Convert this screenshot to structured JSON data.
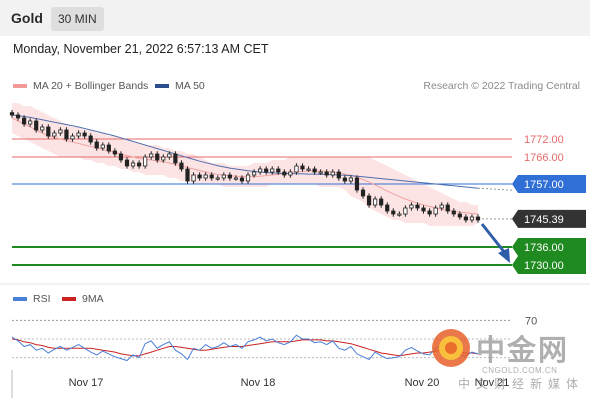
{
  "header": {
    "asset": "Gold",
    "timeframe": "30 MIN"
  },
  "timestamp": "Monday, November 21, 2022 6:57:13 AM CET",
  "legend": {
    "bb_label": "MA 20 + Bollinger Bands",
    "ma50_label": "MA 50",
    "credit": "Research © 2022 Trading Central"
  },
  "rsi_legend": {
    "rsi_label": "RSI",
    "ma_label": "9MA"
  },
  "watermark": {
    "name": "中金网",
    "url": "CNGOLD.COM.CN",
    "sub": "中文财经新媒体",
    "logo_icon": "gold-coin-logo-icon"
  },
  "colors": {
    "resistance": "#e46a6a",
    "pivot": "#2f6fd6",
    "support": "#1f8a1f",
    "price": "#333333",
    "band": "#fde4e4",
    "ma50": "#4f6fae",
    "rsi": "#4a7fd8",
    "rsi_ma": "#cc2222"
  },
  "chart_data": [
    {
      "type": "candlestick",
      "title": "Gold 30 MIN",
      "x_ticks": [
        "Nov 17",
        "Nov 18",
        "Nov 20",
        "Nov 21"
      ],
      "ylim": [
        1725,
        1785
      ],
      "levels": [
        {
          "value": 1772.0,
          "label": "1772.00",
          "kind": "resistance"
        },
        {
          "value": 1766.0,
          "label": "1766.00",
          "kind": "resistance"
        },
        {
          "value": 1757.0,
          "label": "1757.00",
          "kind": "pivot"
        },
        {
          "value": 1745.39,
          "label": "1745.39",
          "kind": "last-price"
        },
        {
          "value": 1736.0,
          "label": "1736.00",
          "kind": "support"
        },
        {
          "value": 1730.0,
          "label": "1730.00",
          "kind": "support"
        }
      ],
      "close": [
        1780,
        1779,
        1777,
        1778,
        1775,
        1776,
        1773,
        1774,
        1775,
        1772,
        1773,
        1774,
        1773,
        1771,
        1769,
        1770,
        1768,
        1767,
        1765,
        1763,
        1764,
        1763,
        1766,
        1767,
        1765,
        1766,
        1767,
        1764,
        1762,
        1758,
        1760,
        1759,
        1760,
        1759,
        1759,
        1760,
        1759,
        1759,
        1758,
        1760,
        1761,
        1762,
        1761,
        1762,
        1761,
        1760,
        1761,
        1763,
        1762,
        1762,
        1761,
        1761,
        1760,
        1761,
        1759,
        1758,
        1759,
        1755,
        1753,
        1750,
        1752,
        1750,
        1748,
        1747,
        1747,
        1749,
        1750,
        1749,
        1748,
        1747,
        1749,
        1750,
        1748,
        1747,
        1746,
        1745,
        1746,
        1745
      ],
      "ma20": [
        1779,
        1778,
        1777,
        1776,
        1775,
        1774,
        1773,
        1772.5,
        1772,
        1771.5,
        1771,
        1770.5,
        1770,
        1769.5,
        1769,
        1768.5,
        1768,
        1767.5,
        1767,
        1766.5,
        1766,
        1765.5,
        1765.2,
        1765,
        1764.7,
        1764.4,
        1764,
        1763.5,
        1763,
        1762.5,
        1762,
        1761.5,
        1761,
        1760.5,
        1760.2,
        1760,
        1759.8,
        1759.6,
        1759.5,
        1759.4,
        1759.5,
        1759.6,
        1759.8,
        1760,
        1760.2,
        1760.5,
        1760.8,
        1761,
        1761.2,
        1761.3,
        1761.4,
        1761.3,
        1761.2,
        1761,
        1760.7,
        1760.3,
        1759.9,
        1759.3,
        1758.5,
        1757.6,
        1756.7,
        1755.7,
        1754.7,
        1753.7,
        1752.8,
        1752,
        1751.3,
        1750.6,
        1750,
        1749.5,
        1749,
        1748.6,
        1748.2,
        1747.9,
        1747.6,
        1747.4,
        1747.2,
        1747
      ],
      "ma50": [
        1780,
        1779.8,
        1779.5,
        1779.2,
        1778.8,
        1778.4,
        1778,
        1777.6,
        1777.2,
        1776.8,
        1776.4,
        1776,
        1775.5,
        1775,
        1774.5,
        1774,
        1773.5,
        1773,
        1772.4,
        1771.8,
        1771.2,
        1770.6,
        1770,
        1769.4,
        1768.8,
        1768.2,
        1767.6,
        1767,
        1766.4,
        1765.8,
        1765.2,
        1764.6,
        1764.1,
        1763.6,
        1763.1,
        1762.7,
        1762.3,
        1762,
        1761.7,
        1761.4,
        1761.2,
        1761,
        1760.8,
        1760.7,
        1760.6,
        1760.5,
        1760.5,
        1760.4,
        1760.4,
        1760.3,
        1760.3,
        1760.2,
        1760.2,
        1760.1,
        1760,
        1759.9,
        1759.8,
        1759.6,
        1759.4,
        1759.2,
        1759,
        1758.8,
        1758.6,
        1758.4,
        1758.2,
        1758,
        1757.8,
        1757.6,
        1757.4,
        1757.2,
        1757,
        1756.8,
        1756.6,
        1756.4,
        1756.2,
        1756,
        1755.8,
        1755.6
      ],
      "bb_upper": [
        1784,
        1784,
        1783,
        1783,
        1782,
        1781,
        1780,
        1779,
        1778,
        1777,
        1776,
        1776,
        1775,
        1775,
        1774,
        1774,
        1773,
        1773,
        1772,
        1772,
        1771,
        1771,
        1770,
        1770,
        1770,
        1769,
        1769,
        1768,
        1768,
        1767,
        1767,
        1766,
        1765,
        1764,
        1764,
        1764,
        1763,
        1763,
        1763,
        1763,
        1764,
        1764,
        1764,
        1765,
        1765,
        1765,
        1766,
        1766,
        1766,
        1766,
        1766,
        1766,
        1766,
        1766,
        1766,
        1766,
        1766,
        1766,
        1766,
        1766,
        1765,
        1764,
        1763,
        1762,
        1761,
        1760,
        1759,
        1758,
        1757,
        1756,
        1755,
        1754,
        1753,
        1752,
        1751,
        1751,
        1750,
        1750
      ],
      "bb_lower": [
        1774,
        1773,
        1772,
        1771,
        1770,
        1769,
        1768,
        1767,
        1766,
        1766,
        1766,
        1766,
        1765,
        1765,
        1764,
        1764,
        1763,
        1763,
        1762,
        1762,
        1761,
        1761,
        1760,
        1760,
        1760,
        1760,
        1759,
        1759,
        1758,
        1758,
        1757,
        1757,
        1757,
        1757,
        1757,
        1756,
        1756,
        1756,
        1756,
        1756,
        1756,
        1756,
        1756,
        1757,
        1757,
        1757,
        1757,
        1757,
        1757,
        1757,
        1757,
        1756,
        1756,
        1756,
        1756,
        1755,
        1753,
        1752,
        1751,
        1749,
        1748,
        1747,
        1746,
        1745,
        1745,
        1744,
        1744,
        1744,
        1744,
        1743,
        1743,
        1743,
        1743,
        1743,
        1743,
        1743,
        1743,
        1744
      ]
    },
    {
      "type": "line",
      "title": "RSI",
      "ylim": [
        20,
        80
      ],
      "y_ticks": [
        70
      ],
      "series": [
        {
          "name": "RSI",
          "values": [
            52,
            48,
            42,
            44,
            38,
            40,
            35,
            39,
            42,
            38,
            41,
            44,
            40,
            36,
            33,
            37,
            34,
            31,
            29,
            27,
            33,
            30,
            45,
            48,
            40,
            44,
            47,
            38,
            34,
            28,
            40,
            38,
            44,
            40,
            42,
            46,
            42,
            44,
            40,
            47,
            49,
            52,
            48,
            50,
            46,
            44,
            47,
            54,
            50,
            50,
            46,
            47,
            44,
            48,
            40,
            38,
            42,
            34,
            31,
            28,
            36,
            32,
            29,
            30,
            31,
            38,
            41,
            37,
            34,
            33,
            40,
            43,
            37,
            35,
            33,
            32,
            36,
            34
          ]
        },
        {
          "name": "9MA",
          "values": [
            50,
            49,
            47,
            46,
            44,
            43,
            41,
            40,
            40,
            40,
            40,
            40,
            40,
            40,
            39,
            38,
            37,
            36,
            34,
            33,
            32,
            32,
            34,
            36,
            38,
            40,
            42,
            42,
            41,
            40,
            39,
            38,
            38,
            39,
            40,
            41,
            42,
            42,
            42,
            43,
            44,
            45,
            46,
            47,
            47,
            47,
            47,
            48,
            49,
            49,
            49,
            49,
            48,
            48,
            47,
            46,
            45,
            43,
            41,
            39,
            37,
            35,
            34,
            33,
            32,
            33,
            34,
            35,
            35,
            36,
            37,
            38,
            38,
            37,
            36,
            35,
            35,
            34
          ]
        }
      ]
    }
  ]
}
